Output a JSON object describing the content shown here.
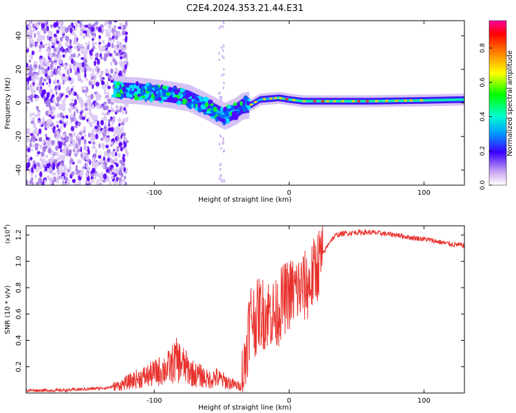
{
  "title": "C2E4.2024.353.21.44.E31",
  "chart_data": [
    {
      "type": "heatmap",
      "xlabel": "Height of straight line (km)",
      "ylabel": "Frequency (Hz)",
      "xlim": [
        -195,
        130
      ],
      "ylim": [
        -49,
        49
      ],
      "xticks": [
        -100,
        0,
        100
      ],
      "yticks": [
        -40,
        -20,
        0,
        20,
        40
      ],
      "colorbar": {
        "label": "Normalized spectral amplitude",
        "range": [
          0,
          0.96
        ],
        "ticks": [
          0.0,
          0.2,
          0.4,
          0.6,
          0.8
        ]
      },
      "ridge": {
        "x": [
          -195,
          -160,
          -130,
          -110,
          -90,
          -75,
          -62,
          -55,
          -48,
          -40,
          -35,
          -28,
          -22,
          -15,
          -8,
          0,
          10,
          30,
          60,
          100,
          130
        ],
        "y": [
          8,
          9,
          8,
          7,
          5,
          3,
          -2,
          -5,
          -8,
          -5,
          -2,
          -1,
          2,
          2.5,
          3,
          2,
          1,
          1,
          1,
          1.5,
          2
        ]
      }
    },
    {
      "type": "line",
      "xlabel": "Height of straight line (km)",
      "ylabel": "SNR (10 * v/v)",
      "yscale_label": "(x10",
      "yscale_exp": "4",
      "yscale_close": ")",
      "xlim": [
        -195,
        130
      ],
      "ylim": [
        0,
        1.27
      ],
      "xticks": [
        -100,
        0,
        100
      ],
      "yticks": [
        0.2,
        0.4,
        0.6,
        0.8,
        1.0,
        1.2
      ],
      "line_color": "#e8312c",
      "series": [
        {
          "x": [
            -195,
            -170,
            -150,
            -135,
            -125,
            -115,
            -105,
            -95,
            -88,
            -84,
            -80,
            -75,
            -70,
            -65,
            -60,
            -55,
            -50,
            -45,
            -40,
            -36,
            -33,
            -30,
            -28,
            -25,
            -22,
            -18,
            -14,
            -10,
            -5,
            0,
            5,
            10,
            15,
            20,
            25,
            30,
            35,
            40,
            50,
            60,
            70,
            80,
            90,
            100,
            110,
            120,
            130
          ],
          "y": [
            0.02,
            0.02,
            0.03,
            0.04,
            0.06,
            0.1,
            0.13,
            0.17,
            0.2,
            0.25,
            0.23,
            0.18,
            0.14,
            0.13,
            0.1,
            0.12,
            0.1,
            0.08,
            0.06,
            0.05,
            0.2,
            0.5,
            0.6,
            0.55,
            0.62,
            0.6,
            0.62,
            0.58,
            0.7,
            0.75,
            0.78,
            0.8,
            0.82,
            0.95,
            1.05,
            1.15,
            1.2,
            1.21,
            1.22,
            1.22,
            1.21,
            1.2,
            1.18,
            1.17,
            1.15,
            1.13,
            1.12
          ]
        }
      ]
    }
  ]
}
